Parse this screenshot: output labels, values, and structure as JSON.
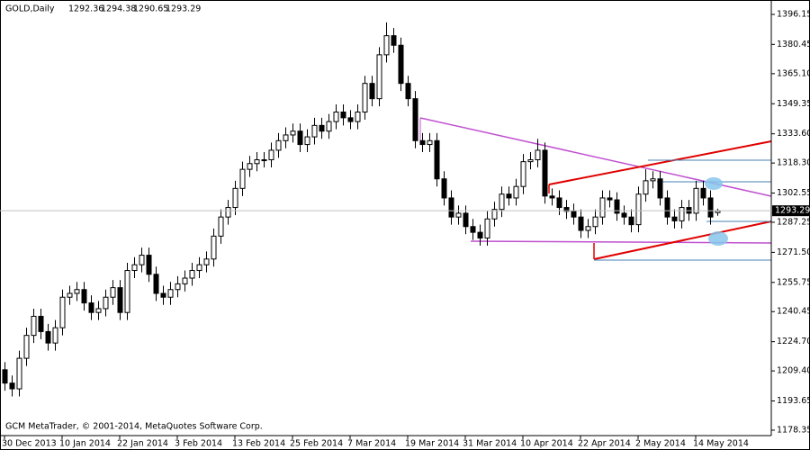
{
  "chart_data": {
    "type": "candlestick",
    "title": "GOLD,Daily",
    "footer": "GCM MetaTrader, © 2001-2014, MetaQuotes Software Corp.",
    "categories": [
      "30 Dec 2013",
      null,
      null,
      null,
      null,
      null,
      null,
      null,
      "10 Jan 2014",
      null,
      null,
      null,
      null,
      null,
      null,
      null,
      "22 Jan 2014",
      null,
      null,
      null,
      null,
      null,
      null,
      null,
      "3 Feb 2014",
      null,
      null,
      null,
      null,
      null,
      null,
      null,
      "13 Feb 2014",
      null,
      null,
      null,
      null,
      null,
      null,
      null,
      "25 Feb 2014",
      null,
      null,
      null,
      null,
      null,
      null,
      null,
      "7 Mar 2014",
      null,
      null,
      null,
      null,
      null,
      null,
      null,
      "19 Mar 2014",
      null,
      null,
      null,
      null,
      null,
      null,
      null,
      "31 Mar 2014",
      null,
      null,
      null,
      null,
      null,
      null,
      null,
      "10 Apr 2014",
      null,
      null,
      null,
      null,
      null,
      null,
      null,
      "22 Apr 2014",
      null,
      null,
      null,
      null,
      null,
      null,
      null,
      "2 May 2014",
      null,
      null,
      null,
      null,
      null,
      null,
      null,
      "14 May 2014",
      null,
      null,
      null
    ],
    "open": [
      1210,
      1203,
      1200,
      1216,
      1228,
      1238,
      1230,
      1224,
      1232,
      1248,
      1250,
      1252,
      1245,
      1240,
      1242,
      1248,
      1253,
      1240,
      1262,
      1265,
      1270,
      1260,
      1250,
      1248,
      1252,
      1255,
      1258,
      1262,
      1265,
      1268,
      1280,
      1290,
      1295,
      1305,
      1315,
      1318,
      1320,
      1320,
      1325,
      1330,
      1333,
      1335,
      1328,
      1332,
      1338,
      1335,
      1340,
      1345,
      1342,
      1340,
      1345,
      1360,
      1352,
      1375,
      1385,
      1380,
      1360,
      1352,
      1330,
      1328,
      1330,
      1310,
      1300,
      1290,
      1292,
      1285,
      1282,
      1279,
      1289,
      1294,
      1302,
      1300,
      1306,
      1319,
      1320,
      1325,
      1301,
      1300,
      1295,
      1293,
      1290,
      1283,
      1285,
      1290,
      1300,
      1299,
      1292,
      1290,
      1286,
      1302,
      1309,
      1310,
      1300,
      1290,
      1288,
      1295,
      1292,
      1305,
      1300,
      1292.36
    ],
    "high": [
      1214,
      1207,
      1220,
      1232,
      1242,
      1242,
      1234,
      1236,
      1252,
      1254,
      1256,
      1256,
      1249,
      1246,
      1252,
      1257,
      1257,
      1266,
      1269,
      1274,
      1274,
      1264,
      1254,
      1256,
      1259,
      1262,
      1266,
      1269,
      1272,
      1284,
      1294,
      1299,
      1309,
      1319,
      1322,
      1324,
      1324,
      1329,
      1334,
      1337,
      1339,
      1339,
      1336,
      1342,
      1342,
      1344,
      1349,
      1349,
      1346,
      1349,
      1364,
      1364,
      1379,
      1392,
      1389,
      1384,
      1364,
      1356,
      1334,
      1334,
      1334,
      1314,
      1304,
      1296,
      1296,
      1289,
      1286,
      1293,
      1298,
      1306,
      1306,
      1310,
      1323,
      1324,
      1331,
      1329,
      1305,
      1304,
      1299,
      1297,
      1294,
      1289,
      1294,
      1304,
      1304,
      1303,
      1296,
      1294,
      1306,
      1315,
      1314,
      1314,
      1304,
      1294,
      1299,
      1299,
      1309,
      1309,
      1304,
      1294.38
    ],
    "low": [
      1199,
      1196,
      1196,
      1212,
      1224,
      1226,
      1220,
      1220,
      1228,
      1244,
      1246,
      1241,
      1236,
      1236,
      1238,
      1244,
      1236,
      1236,
      1258,
      1261,
      1256,
      1246,
      1244,
      1244,
      1248,
      1251,
      1254,
      1258,
      1261,
      1264,
      1276,
      1286,
      1291,
      1301,
      1311,
      1314,
      1316,
      1316,
      1321,
      1326,
      1329,
      1324,
      1324,
      1328,
      1331,
      1331,
      1336,
      1338,
      1336,
      1336,
      1341,
      1348,
      1348,
      1371,
      1376,
      1356,
      1348,
      1326,
      1324,
      1324,
      1306,
      1296,
      1286,
      1286,
      1281,
      1278,
      1275,
      1275,
      1285,
      1290,
      1296,
      1296,
      1302,
      1315,
      1316,
      1297,
      1296,
      1291,
      1289,
      1286,
      1279,
      1279,
      1281,
      1286,
      1295,
      1288,
      1286,
      1282,
      1282,
      1298,
      1305,
      1296,
      1286,
      1284,
      1284,
      1288,
      1288,
      1296,
      1286,
      1290.65
    ],
    "close": [
      1203,
      1200,
      1216,
      1228,
      1238,
      1230,
      1224,
      1232,
      1248,
      1250,
      1252,
      1245,
      1240,
      1242,
      1248,
      1253,
      1240,
      1262,
      1265,
      1270,
      1260,
      1250,
      1248,
      1252,
      1255,
      1258,
      1262,
      1265,
      1268,
      1280,
      1290,
      1295,
      1305,
      1315,
      1318,
      1320,
      1320,
      1325,
      1330,
      1333,
      1335,
      1328,
      1332,
      1338,
      1335,
      1340,
      1345,
      1342,
      1340,
      1345,
      1360,
      1352,
      1375,
      1385,
      1380,
      1360,
      1352,
      1330,
      1328,
      1330,
      1310,
      1300,
      1290,
      1292,
      1285,
      1282,
      1279,
      1289,
      1294,
      1302,
      1300,
      1306,
      1319,
      1320,
      1325,
      1301,
      1300,
      1295,
      1293,
      1290,
      1283,
      1285,
      1290,
      1300,
      1299,
      1292,
      1290,
      1286,
      1302,
      1309,
      1310,
      1300,
      1290,
      1288,
      1295,
      1292,
      1305,
      1300,
      1290,
      1293.29
    ],
    "ylim": [
      1175.5,
      1403.7
    ],
    "yticks": [
      1396.15,
      1380.45,
      {
        "value": 1365.1,
        "label": "1365.10"
      },
      1349.35,
      {
        "value": 1333.6,
        "label": "1333.60"
      },
      {
        "value": 1318.3,
        "label": "1318.30"
      },
      1302.55,
      1287.25,
      {
        "value": 1271.5,
        "label": "1271.50"
      },
      1255.75,
      1240.45,
      {
        "value": 1224.7,
        "label": "1224.70"
      },
      {
        "value": 1209.4,
        "label": "1209.40"
      },
      1193.65,
      1178.35
    ],
    "up_color": "#ffffff",
    "down_color": "#000000",
    "grid": false
  }
}
